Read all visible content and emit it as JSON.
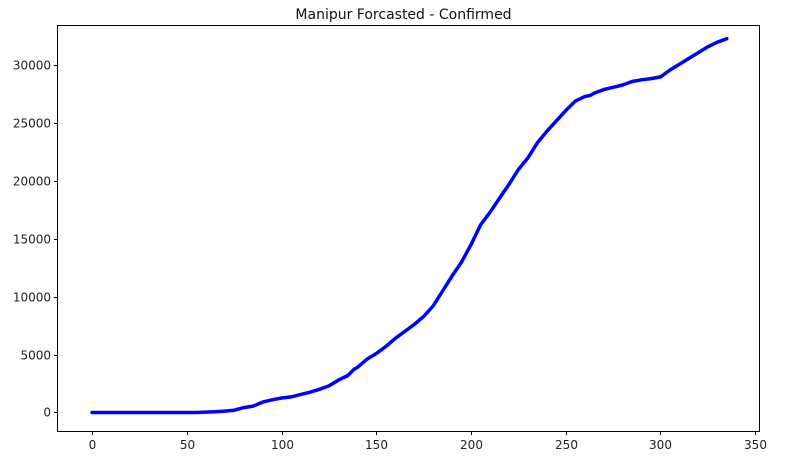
{
  "chart_data": {
    "type": "line",
    "title": "Manipur Forcasted - Confirmed",
    "xlabel": "",
    "ylabel": "",
    "xlim": [
      -18,
      352
    ],
    "ylim": [
      -1600,
      33400
    ],
    "grid": false,
    "x_ticks": [
      0,
      50,
      100,
      150,
      200,
      250,
      300,
      350
    ],
    "y_ticks": [
      0,
      5000,
      10000,
      15000,
      20000,
      25000,
      30000
    ],
    "x_tick_labels": [
      "0",
      "50",
      "100",
      "150",
      "200",
      "250",
      "300",
      "350"
    ],
    "y_tick_labels": [
      "0",
      "5000",
      "10000",
      "15000",
      "20000",
      "25000",
      "30000"
    ],
    "series": [
      {
        "color": "#0000ff",
        "x": [
          0,
          10,
          20,
          30,
          40,
          50,
          55,
          60,
          65,
          70,
          75,
          80,
          85,
          90,
          95,
          100,
          105,
          110,
          115,
          120,
          125,
          130,
          135,
          138,
          140,
          145,
          150,
          155,
          160,
          165,
          170,
          175,
          180,
          185,
          190,
          195,
          200,
          205,
          210,
          215,
          220,
          225,
          230,
          235,
          240,
          245,
          250,
          255,
          260,
          263,
          265,
          270,
          275,
          280,
          285,
          290,
          295,
          300,
          305,
          310,
          315,
          320,
          325,
          330,
          335
        ],
        "y": [
          0,
          0,
          0,
          0,
          0,
          0,
          0,
          30,
          60,
          120,
          200,
          420,
          550,
          900,
          1100,
          1250,
          1350,
          1550,
          1750,
          2000,
          2300,
          2800,
          3200,
          3700,
          3900,
          4600,
          5100,
          5700,
          6400,
          7000,
          7600,
          8300,
          9200,
          10500,
          11800,
          13000,
          14500,
          16200,
          17300,
          18500,
          19700,
          21000,
          22000,
          23300,
          24300,
          25200,
          26100,
          26900,
          27300,
          27400,
          27600,
          27900,
          28100,
          28300,
          28600,
          28750,
          28850,
          29000,
          29600,
          30100,
          30600,
          31100,
          31600,
          32000,
          32300
        ]
      }
    ]
  }
}
